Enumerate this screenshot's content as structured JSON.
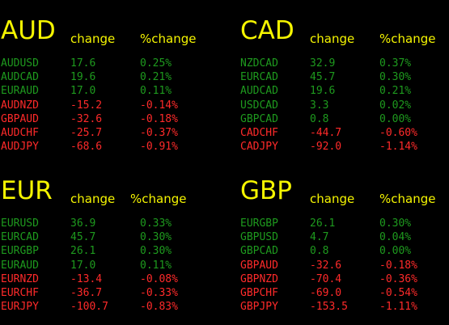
{
  "colors": {
    "background": "#000000",
    "header": "#f5f500",
    "positive": "#1e9a1e",
    "negative": "#ff2a2a"
  },
  "panels": [
    {
      "currency": "AUD",
      "change_label": "change",
      "pct_label": "%change",
      "rows": [
        {
          "pair": "AUDUSD",
          "change": "17.6",
          "pct": "0.25%",
          "direction": "up"
        },
        {
          "pair": "AUDCAD",
          "change": "19.6",
          "pct": "0.21%",
          "direction": "up"
        },
        {
          "pair": "EURAUD",
          "change": "17.0",
          "pct": "0.11%",
          "direction": "up"
        },
        {
          "pair": "AUDNZD",
          "change": "-15.2",
          "pct": "-0.14%",
          "direction": "down"
        },
        {
          "pair": "GBPAUD",
          "change": "-32.6",
          "pct": "-0.18%",
          "direction": "down"
        },
        {
          "pair": "AUDCHF",
          "change": "-25.7",
          "pct": "-0.37%",
          "direction": "down"
        },
        {
          "pair": "AUDJPY",
          "change": "-68.6",
          "pct": "-0.91%",
          "direction": "down"
        }
      ]
    },
    {
      "currency": "CAD",
      "change_label": "change",
      "pct_label": "%change",
      "rows": [
        {
          "pair": "NZDCAD",
          "change": "32.9",
          "pct": "0.37%",
          "direction": "up"
        },
        {
          "pair": "EURCAD",
          "change": "45.7",
          "pct": "0.30%",
          "direction": "up"
        },
        {
          "pair": "AUDCAD",
          "change": "19.6",
          "pct": "0.21%",
          "direction": "up"
        },
        {
          "pair": "USDCAD",
          "change": "3.3",
          "pct": "0.02%",
          "direction": "up"
        },
        {
          "pair": "GBPCAD",
          "change": "0.8",
          "pct": "0.00%",
          "direction": "up"
        },
        {
          "pair": "CADCHF",
          "change": "-44.7",
          "pct": "-0.60%",
          "direction": "down"
        },
        {
          "pair": "CADJPY",
          "change": "-92.0",
          "pct": "-1.14%",
          "direction": "down"
        }
      ]
    },
    {
      "currency": "EUR",
      "change_label": "change",
      "pct_label": "%change",
      "rows": [
        {
          "pair": "EURUSD",
          "change": "36.9",
          "pct": "0.33%",
          "direction": "up"
        },
        {
          "pair": "EURCAD",
          "change": "45.7",
          "pct": "0.30%",
          "direction": "up"
        },
        {
          "pair": "EURGBP",
          "change": "26.1",
          "pct": "0.30%",
          "direction": "up"
        },
        {
          "pair": "EURAUD",
          "change": "17.0",
          "pct": "0.11%",
          "direction": "up"
        },
        {
          "pair": "EURNZD",
          "change": "-13.4",
          "pct": "-0.08%",
          "direction": "down"
        },
        {
          "pair": "EURCHF",
          "change": "-36.7",
          "pct": "-0.33%",
          "direction": "down"
        },
        {
          "pair": "EURJPY",
          "change": "-100.7",
          "pct": "-0.83%",
          "direction": "down"
        }
      ]
    },
    {
      "currency": "GBP",
      "change_label": "change",
      "pct_label": "%change",
      "rows": [
        {
          "pair": "EURGBP",
          "change": "26.1",
          "pct": "0.30%",
          "direction": "up"
        },
        {
          "pair": "GBPUSD",
          "change": "4.7",
          "pct": "0.04%",
          "direction": "up"
        },
        {
          "pair": "GBPCAD",
          "change": "0.8",
          "pct": "0.00%",
          "direction": "up"
        },
        {
          "pair": "GBPAUD",
          "change": "-32.6",
          "pct": "-0.18%",
          "direction": "down"
        },
        {
          "pair": "GBPNZD",
          "change": "-70.4",
          "pct": "-0.36%",
          "direction": "down"
        },
        {
          "pair": "GBPCHF",
          "change": "-69.0",
          "pct": "-0.54%",
          "direction": "down"
        },
        {
          "pair": "GBPJPY",
          "change": "-153.5",
          "pct": "-1.11%",
          "direction": "down"
        }
      ]
    }
  ]
}
